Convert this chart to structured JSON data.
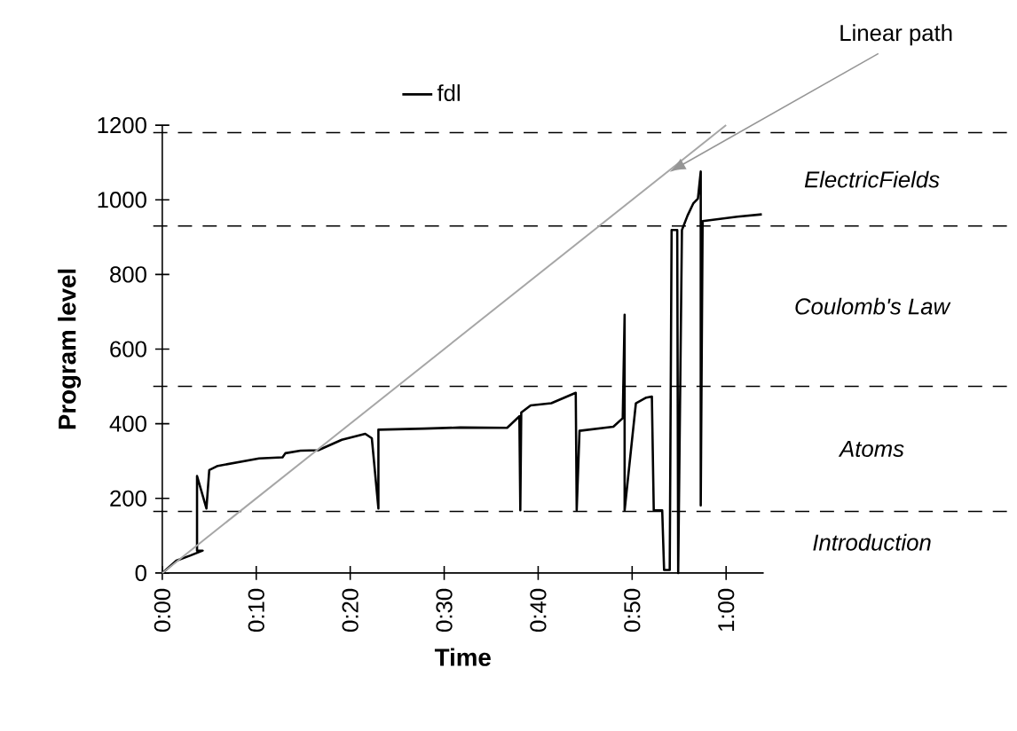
{
  "chart_data": {
    "type": "line",
    "xlabel": "Time",
    "ylabel": "Program level",
    "xlim": [
      0,
      64
    ],
    "ylim": [
      0,
      1200
    ],
    "xticks": [
      {
        "value": 0,
        "label": "0:00"
      },
      {
        "value": 10,
        "label": "0:10"
      },
      {
        "value": 20,
        "label": "0:20"
      },
      {
        "value": 30,
        "label": "0:30"
      },
      {
        "value": 40,
        "label": "0:40"
      },
      {
        "value": 50,
        "label": "0:50"
      },
      {
        "value": 60,
        "label": "1:00"
      }
    ],
    "yticks": [
      0,
      200,
      400,
      600,
      800,
      1000,
      1200
    ],
    "grid": false,
    "legend": "top",
    "marker": "none",
    "series": [
      {
        "name": "fdl",
        "color": "#000000",
        "x": [
          0,
          1.5,
          3,
          4.3,
          3.7,
          3.7,
          4.7,
          5.0,
          5.9,
          10.3,
          12.8,
          13.1,
          14.7,
          16.6,
          19.1,
          21.6,
          22.3,
          23.0,
          23.0,
          27.9,
          31.7,
          36.7,
          38.0,
          38.1,
          38.2,
          39.2,
          41.4,
          44.0,
          44.1,
          44.4,
          48.0,
          49.0,
          49.2,
          49.2,
          50.4,
          51.5,
          52.1,
          52.3,
          53.2,
          53.4,
          54.0,
          54.2,
          54.8,
          54.9,
          55.3,
          55.9,
          56.5,
          57.0,
          57.3,
          57.3,
          57.5,
          61.2,
          63.8
        ],
        "values": [
          0,
          33,
          47,
          60,
          60,
          260,
          173,
          276,
          287,
          307,
          310,
          321,
          328,
          329,
          357,
          373,
          361,
          173,
          384,
          387,
          390,
          389,
          420,
          168,
          430,
          449,
          455,
          483,
          168,
          381,
          392,
          415,
          692,
          168,
          455,
          470,
          473,
          168,
          168,
          8,
          8,
          919,
          919,
          0,
          919,
          958,
          990,
          1003,
          1076,
          181,
          943,
          955,
          961
        ]
      },
      {
        "color": "#a6a6a6",
        "x": [
          0,
          60
        ],
        "values": [
          0,
          1200
        ]
      }
    ],
    "ref_lines": [
      {
        "axis": "y",
        "value": 165,
        "line_style": "dashed",
        "color": "#000000"
      },
      {
        "axis": "y",
        "value": 500,
        "line_style": "dashed",
        "color": "#000000"
      },
      {
        "axis": "y",
        "value": 930,
        "line_style": "dashed",
        "color": "#000000"
      },
      {
        "axis": "y",
        "value": 1180,
        "line_style": "dashed",
        "color": "#000000"
      }
    ],
    "annotations": [
      "Introduction",
      "Atoms",
      "Coulomb's Law",
      "ElectricFields",
      {
        "text": "Linear path",
        "x": 54,
        "y": 1075
      }
    ]
  }
}
